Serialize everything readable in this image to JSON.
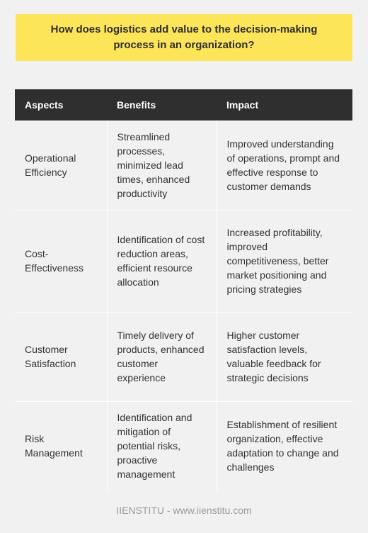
{
  "title": "How does logistics add value to the decision-making process in an organization?",
  "table": {
    "headers": [
      "Aspects",
      "Benefits",
      "Impact"
    ],
    "rows": [
      {
        "aspect": "Operational Efficiency",
        "benefits": "Streamlined processes, minimized lead times, enhanced productivity",
        "impact": "Improved understanding of operations, prompt and effective response to customer demands"
      },
      {
        "aspect": "Cost-Effectiveness",
        "benefits": "Identification of cost reduction areas, efficient resource allocation",
        "impact": "Increased profitability, improved competitiveness, better market positioning and pricing strategies"
      },
      {
        "aspect": "Customer Satisfaction",
        "benefits": "Timely delivery of products, enhanced customer experience",
        "impact": "Higher customer satisfaction levels, valuable feedback for strategic decisions"
      },
      {
        "aspect": "Risk Management",
        "benefits": "Identification and mitigation of potential risks, proactive management",
        "impact": "Establishment of resilient organization, effective adaptation to change and challenges"
      }
    ]
  },
  "footer": "IIENSTITU - www.iienstitu.com",
  "colors": {
    "title_background": "#fde55a",
    "header_background": "#2f2f2f",
    "page_background": "#f1f1f1"
  }
}
